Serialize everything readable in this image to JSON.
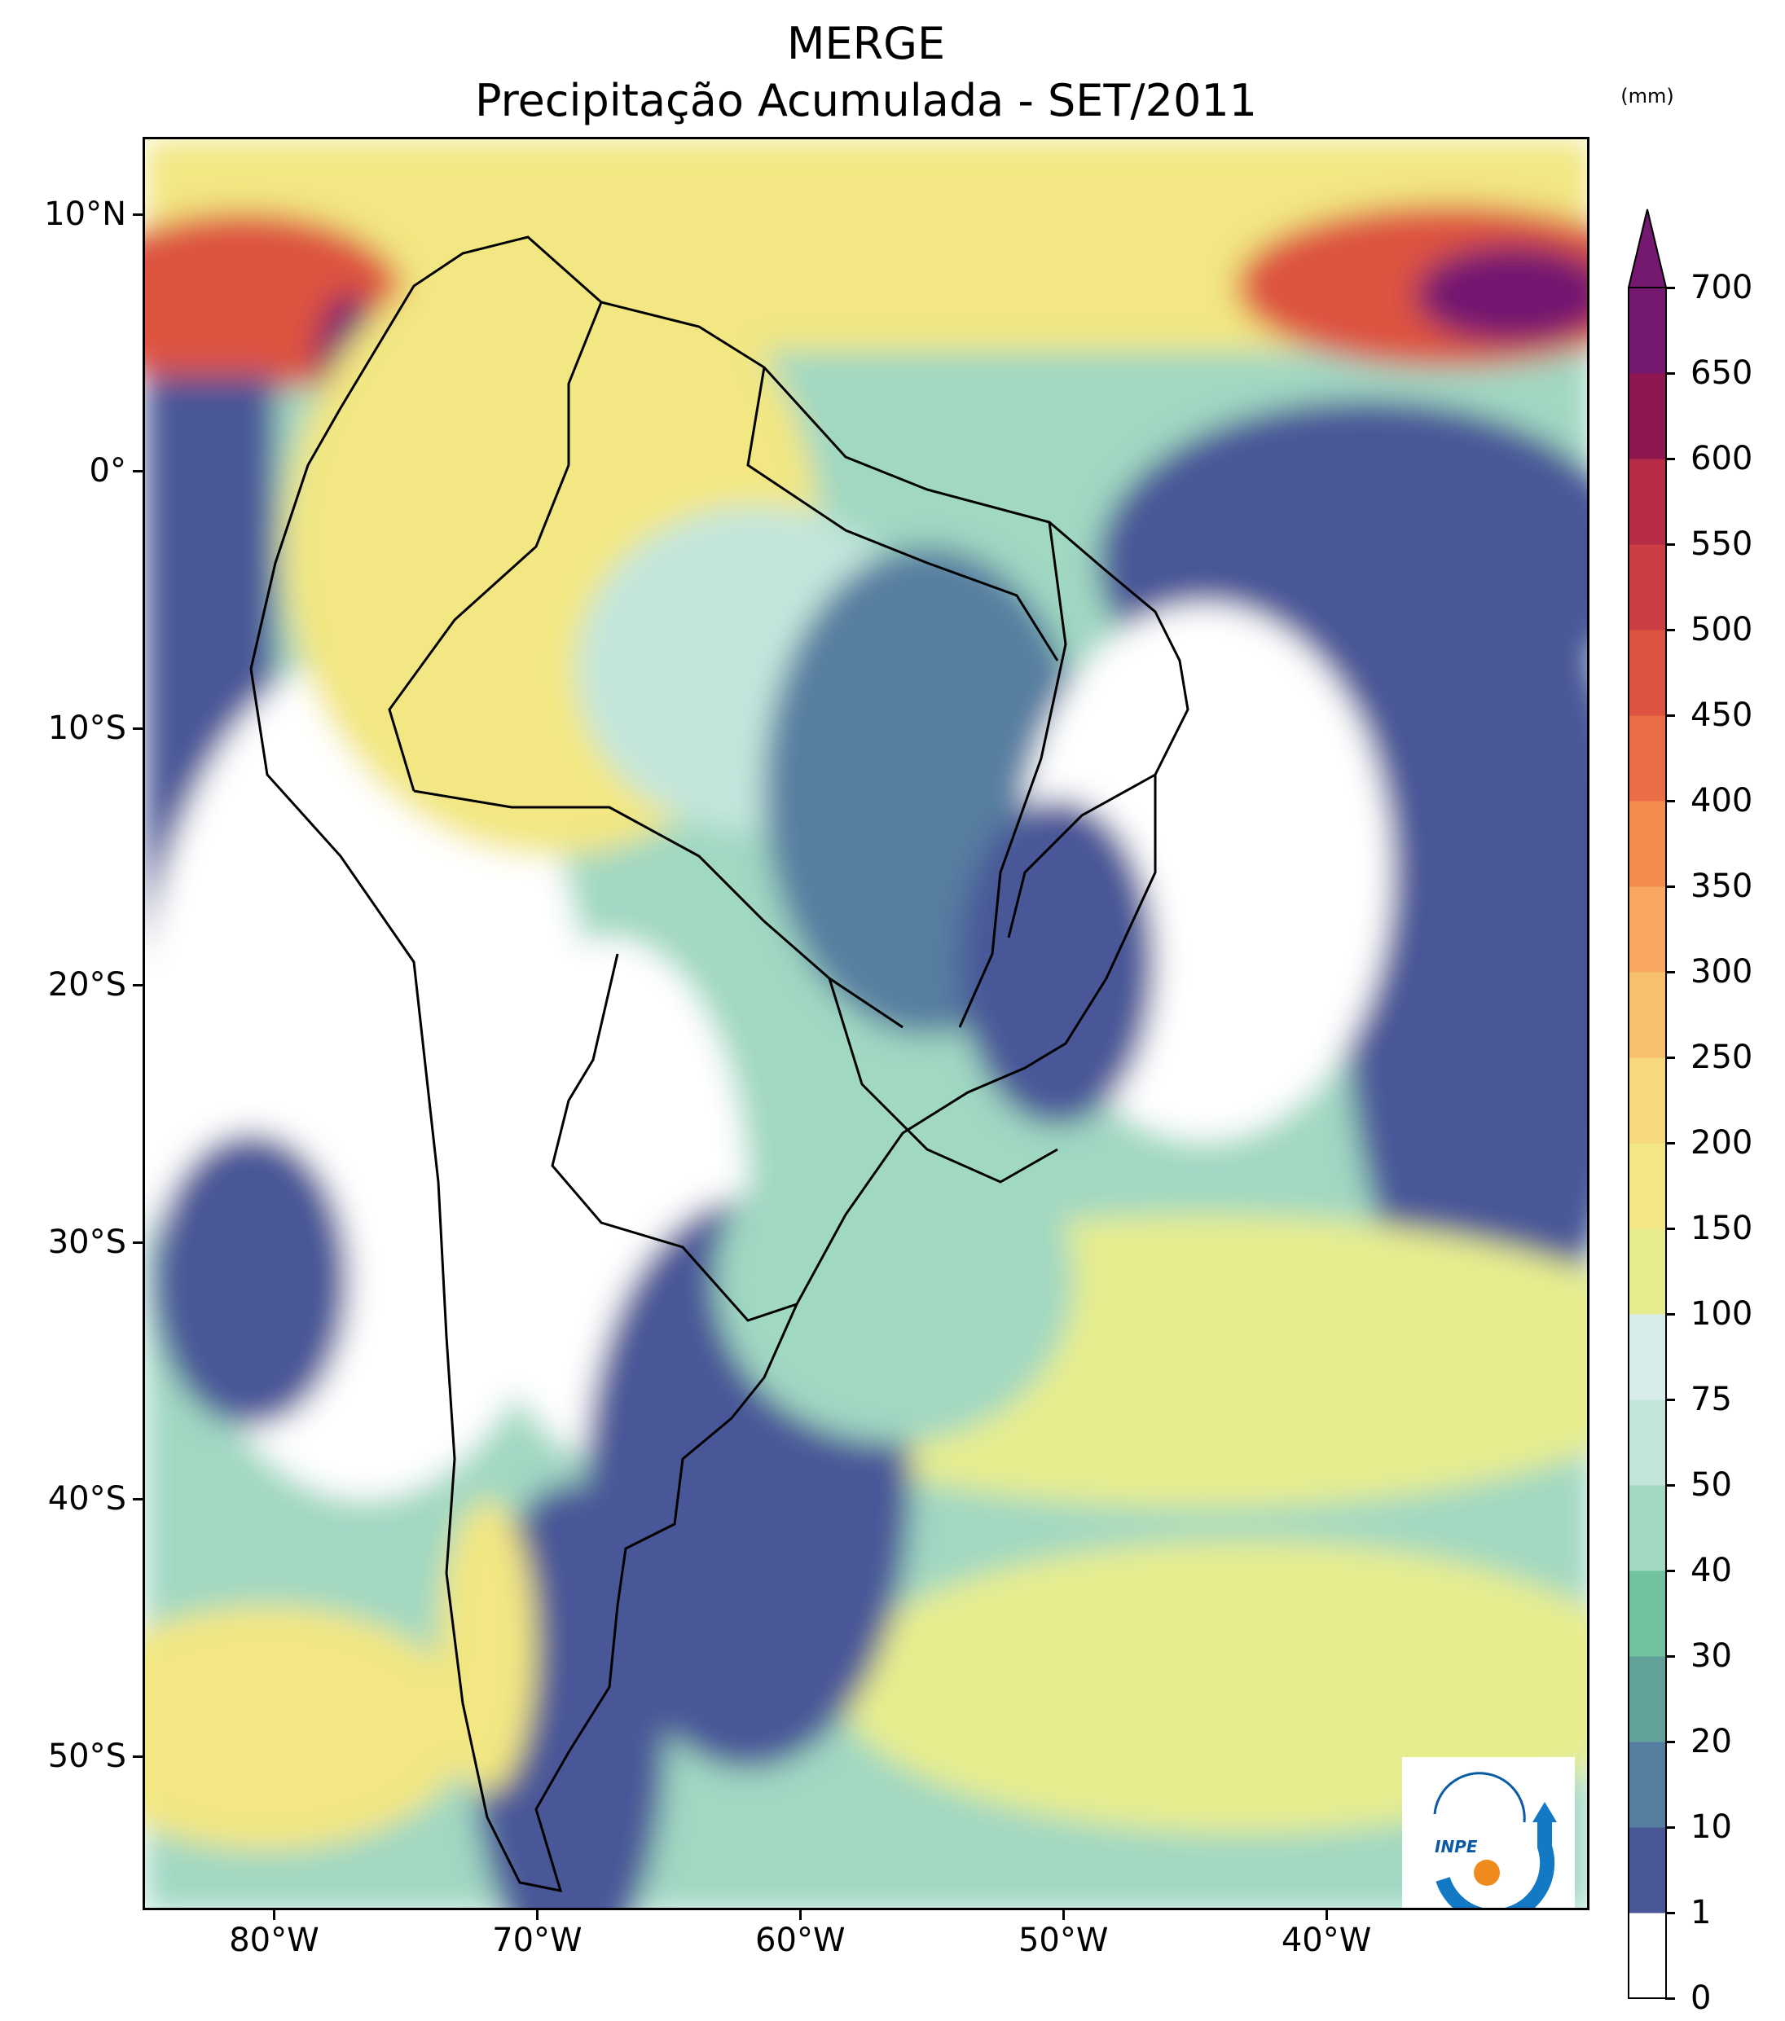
{
  "title": {
    "line1": "MERGE",
    "line2": "Precipitação Acumulada - SET/2011"
  },
  "map": {
    "extent": {
      "lon_min": -85,
      "lon_max": -30,
      "lat_min": -56,
      "lat_max": 13
    },
    "lat_ticks": [
      {
        "value": 10,
        "label": "10°N"
      },
      {
        "value": 0,
        "label": "0°"
      },
      {
        "value": -10,
        "label": "10°S"
      },
      {
        "value": -20,
        "label": "20°S"
      },
      {
        "value": -30,
        "label": "30°S"
      },
      {
        "value": -40,
        "label": "40°S"
      },
      {
        "value": -50,
        "label": "50°S"
      }
    ],
    "lon_ticks": [
      {
        "value": -80,
        "label": "80°W"
      },
      {
        "value": -70,
        "label": "70°W"
      },
      {
        "value": -60,
        "label": "60°W"
      },
      {
        "value": -50,
        "label": "50°W"
      },
      {
        "value": -40,
        "label": "40°W"
      }
    ]
  },
  "colorbar": {
    "unit": "(mm)",
    "levels": [
      "0",
      "1",
      "10",
      "20",
      "30",
      "40",
      "50",
      "75",
      "100",
      "150",
      "200",
      "250",
      "300",
      "350",
      "400",
      "450",
      "500",
      "550",
      "600",
      "650",
      "700"
    ],
    "colors": [
      "#ffffff",
      "#4a5797",
      "#567ea0",
      "#62a09a",
      "#70c29e",
      "#a0d8c2",
      "#c3e6dc",
      "#d8edeb",
      "#e7ed8e",
      "#f2e782",
      "#f7d87a",
      "#f8c06d",
      "#f8a862",
      "#f48c50",
      "#ea6d46",
      "#dd5240",
      "#cd3d44",
      "#b62b46",
      "#8f1750",
      "#741870"
    ],
    "extend_color": "#741870"
  },
  "logo": {
    "text": "INPE"
  }
}
